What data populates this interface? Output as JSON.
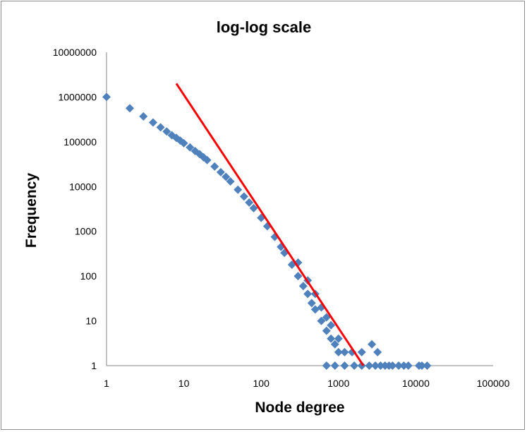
{
  "chart_data": {
    "type": "scatter",
    "title": "log-log scale",
    "xlabel": "Node degree",
    "ylabel": "Frequency",
    "x_scale": "log",
    "y_scale": "log",
    "xlim": [
      1,
      100000
    ],
    "ylim": [
      1,
      10000000
    ],
    "x_ticks": [
      "1",
      "10",
      "100",
      "1000",
      "10000",
      "100000"
    ],
    "y_ticks": [
      "1",
      "10",
      "100",
      "1000",
      "10000",
      "100000",
      "1000000",
      "10000000"
    ],
    "grid": false,
    "legend": "none",
    "series": [
      {
        "marker": "diamond",
        "color": "#4f81bd",
        "points": [
          [
            1,
            1000000
          ],
          [
            2,
            560000
          ],
          [
            3,
            370000
          ],
          [
            4,
            270000
          ],
          [
            5,
            210000
          ],
          [
            6,
            170000
          ],
          [
            7,
            140000
          ],
          [
            8,
            122000
          ],
          [
            9,
            106000
          ],
          [
            10,
            93000
          ],
          [
            12,
            75000
          ],
          [
            14,
            62000
          ],
          [
            16,
            53000
          ],
          [
            18,
            45000
          ],
          [
            20,
            39000
          ],
          [
            25,
            28000
          ],
          [
            30,
            21000
          ],
          [
            35,
            16500
          ],
          [
            40,
            13000
          ],
          [
            50,
            8500
          ],
          [
            60,
            6000
          ],
          [
            70,
            4400
          ],
          [
            80,
            3300
          ],
          [
            100,
            2000
          ],
          [
            120,
            1300
          ],
          [
            150,
            750
          ],
          [
            180,
            450
          ],
          [
            200,
            330
          ],
          [
            250,
            180
          ],
          [
            300,
            100
          ],
          [
            300,
            200
          ],
          [
            350,
            60
          ],
          [
            400,
            40
          ],
          [
            400,
            80
          ],
          [
            450,
            25
          ],
          [
            500,
            18
          ],
          [
            500,
            40
          ],
          [
            600,
            10
          ],
          [
            600,
            20
          ],
          [
            700,
            6
          ],
          [
            700,
            12
          ],
          [
            800,
            4
          ],
          [
            800,
            8
          ],
          [
            900,
            3
          ],
          [
            1000,
            2
          ],
          [
            1000,
            4
          ],
          [
            1200,
            2
          ],
          [
            1500,
            2
          ],
          [
            2000,
            2
          ],
          [
            2700,
            3
          ],
          [
            3200,
            2
          ],
          [
            700,
            1
          ],
          [
            900,
            1
          ],
          [
            1200,
            1
          ],
          [
            1600,
            1
          ],
          [
            2000,
            1
          ],
          [
            2500,
            1
          ],
          [
            3000,
            1
          ],
          [
            3500,
            1
          ],
          [
            4000,
            1
          ],
          [
            4500,
            1
          ],
          [
            5000,
            1
          ],
          [
            6000,
            1
          ],
          [
            7000,
            1
          ],
          [
            8000,
            1
          ],
          [
            11000,
            1
          ],
          [
            12000,
            1
          ],
          [
            14000,
            1
          ]
        ]
      }
    ],
    "trendline": {
      "color": "#ff0000",
      "points": [
        [
          8,
          2000000
        ],
        [
          2100,
          1
        ]
      ]
    }
  }
}
